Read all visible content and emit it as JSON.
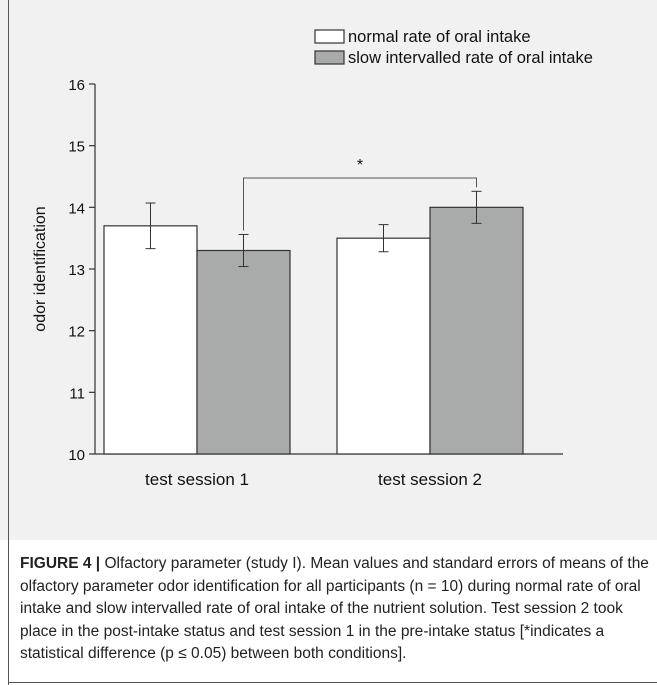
{
  "chart_data": {
    "type": "bar",
    "ylabel": "odor identification",
    "xlabel": "",
    "categories": [
      "test session 1",
      "test session 2"
    ],
    "ylim": [
      10,
      16
    ],
    "yticks": [
      10,
      11,
      12,
      13,
      14,
      15,
      16
    ],
    "series": [
      {
        "name": "normal rate of oral intake",
        "color": "#ffffff",
        "values": [
          13.7,
          13.5
        ],
        "errors": [
          0.37,
          0.22
        ]
      },
      {
        "name": "slow intervalled rate of oral intake",
        "color": "#a9abab",
        "values": [
          13.3,
          14.0
        ],
        "errors": [
          0.26,
          0.26
        ]
      }
    ],
    "legend_position": "top-right",
    "grid": false,
    "annotations": [
      {
        "text": "*",
        "between": [
          "test session 1 / slow intervalled rate of oral intake",
          "test session 2 / slow intervalled rate of oral intake"
        ]
      }
    ]
  },
  "caption": {
    "label": "FIGURE 4 |",
    "text": "Olfactory parameter (study I). Mean values and standard errors of means of the olfactory parameter odor identification for all participants (n = 10) during normal rate of oral intake and slow intervalled rate of oral intake of the nutrient solution. Test session 2 took place in the post-intake status and test session 1 in the pre-intake status [*indicates a statistical difference (p ≤ 0.05) between both conditions]."
  }
}
